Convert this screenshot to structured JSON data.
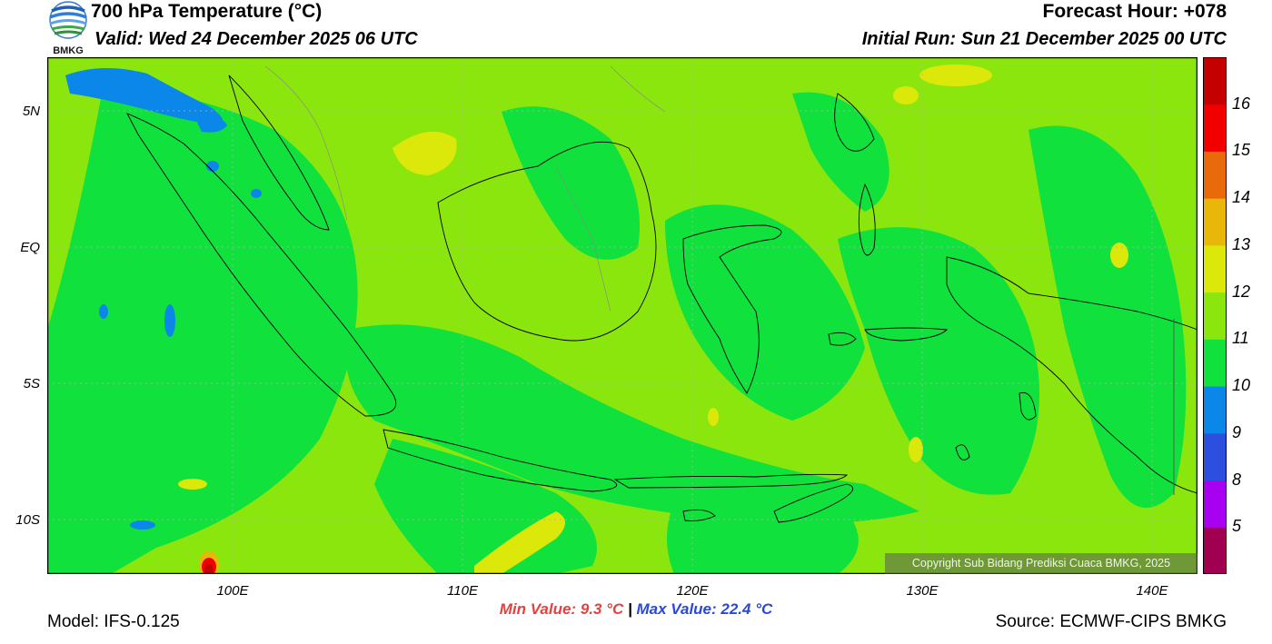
{
  "header": {
    "title": "700 hPa Temperature (°C)",
    "valid": "Valid: Wed 24 December 2025 06 UTC",
    "forecast_hour": "Forecast Hour: +078",
    "initial_run": "Initial Run: Sun 21 December 2025 00 UTC"
  },
  "logo": {
    "text": "BMKG"
  },
  "map": {
    "extent": {
      "lon_min": 92,
      "lon_max": 142,
      "lat_min": -12,
      "lat_max": 7
    },
    "lat_ticks": [
      {
        "value": 5,
        "label": "5N"
      },
      {
        "value": 0,
        "label": "EQ"
      },
      {
        "value": -5,
        "label": "5S"
      },
      {
        "value": -10,
        "label": "10S"
      }
    ],
    "lon_ticks": [
      {
        "value": 100,
        "label": "100E"
      },
      {
        "value": 110,
        "label": "110E"
      },
      {
        "value": 120,
        "label": "120E"
      },
      {
        "value": 130,
        "label": "130E"
      },
      {
        "value": 140,
        "label": "140E"
      }
    ],
    "copyright": "Copyright Sub Bidang Prediksi Cuaca BMKG, 2025"
  },
  "colorbar": {
    "bins": [
      {
        "color": "#a0004f"
      },
      {
        "color": "#a800f0"
      },
      {
        "color": "#2d4fdf"
      },
      {
        "color": "#0a87e8"
      },
      {
        "color": "#10e13c"
      },
      {
        "color": "#8ae60d"
      },
      {
        "color": "#dce80a"
      },
      {
        "color": "#e8b70a"
      },
      {
        "color": "#e86a0a"
      },
      {
        "color": "#f20000"
      },
      {
        "color": "#c40000"
      }
    ],
    "labels": [
      "5",
      "8",
      "9",
      "10",
      "11",
      "12",
      "13",
      "14",
      "15",
      "16"
    ]
  },
  "stats": {
    "min": "Min Value: 9.3 °C",
    "separator": "|",
    "max": "Max Value: 22.4 °C"
  },
  "footer": {
    "model": "Model: IFS-0.125",
    "source": "Source: ECMWF-CIPS BMKG"
  },
  "colors": {
    "land_outline": "#000000",
    "background_field": "#8ae60d",
    "cool_field": "#10e13c",
    "cold_field": "#0a87e8",
    "warm_field": "#dce80a"
  }
}
